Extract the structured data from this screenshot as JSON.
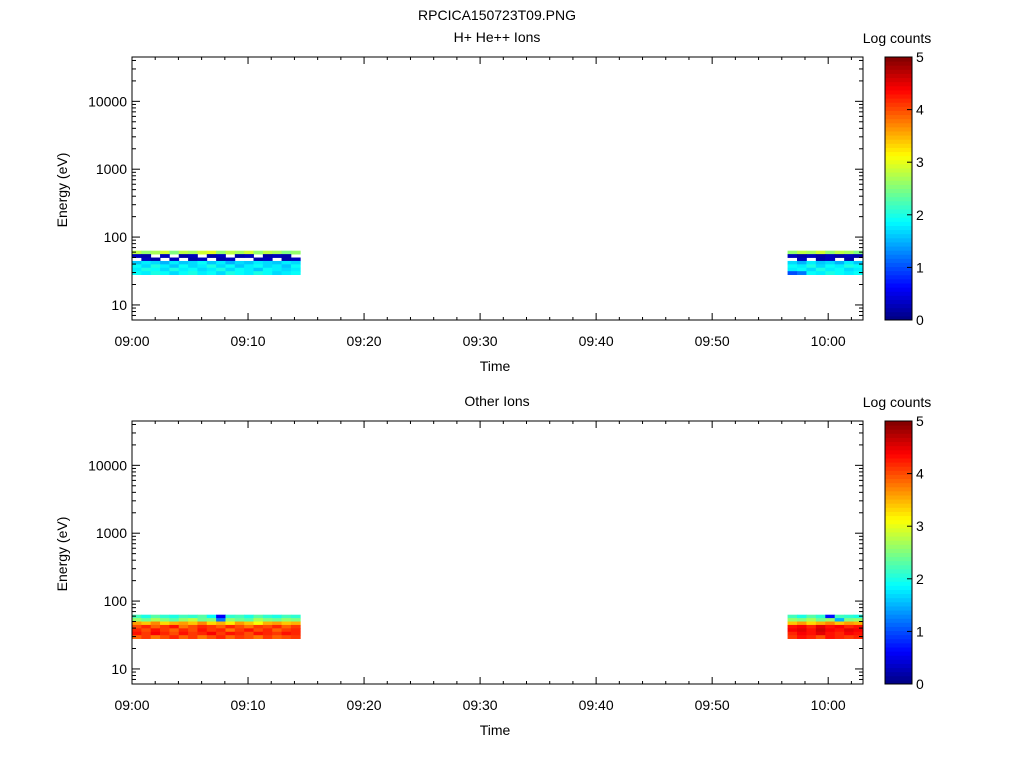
{
  "figure_title": "RPCICA150723T09.PNG",
  "colormap": [
    "#00007f",
    "#0000ff",
    "#007fff",
    "#00ffff",
    "#7fff7f",
    "#ffff00",
    "#ff7f00",
    "#ff0000",
    "#7f0000"
  ],
  "chart_data": [
    {
      "type": "heatmap",
      "title": "H+ He++ Ions",
      "xlabel": "Time",
      "ylabel": "Energy (eV)",
      "y_scale": "log",
      "xlim": [
        "09:00",
        "10:03"
      ],
      "ylim": [
        6,
        45000
      ],
      "x_ticks": [
        "09:00",
        "09:10",
        "09:20",
        "09:30",
        "09:40",
        "09:50",
        "10:00"
      ],
      "y_ticks": [
        10,
        100,
        1000,
        10000
      ],
      "y_tick_labels": [
        "10",
        "100",
        "1000",
        "10000"
      ],
      "colorbar": {
        "label": "Log counts",
        "range": [
          0,
          5
        ],
        "ticks": [
          "0",
          "1",
          "2",
          "3",
          "4",
          "5"
        ]
      },
      "segments": [
        {
          "t_start": "09:00",
          "t_end": "09:14.5",
          "energy_range_eV": [
            28,
            63
          ]
        },
        {
          "t_start": "09:56.5",
          "t_end": "10:03",
          "energy_range_eV": [
            28,
            63
          ]
        }
      ],
      "energy_bins_eV": [
        63,
        55,
        48,
        42,
        37,
        32,
        28
      ],
      "bin_log_counts": [
        {
          "segment": 1,
          "rows": [
            [
              2.8,
              2.6,
              2.7,
              2.9,
              2.5,
              2.8,
              2.7,
              2.9,
              3.0,
              2.6,
              2.8,
              2.7,
              2.9,
              2.6,
              2.8,
              2.7,
              2.5,
              2.6
            ],
            [
              0.3,
              0.2,
              null,
              0.3,
              null,
              0.2,
              0.3,
              null,
              0.2,
              0.3,
              null,
              0.2,
              0.3,
              null,
              0.2,
              0.3,
              0.2,
              null
            ],
            [
              null,
              0.3,
              0.2,
              null,
              0.3,
              null,
              0.2,
              0.3,
              null,
              0.2,
              0.3,
              null,
              null,
              0.2,
              0.3,
              null,
              0.2,
              0.3
            ],
            [
              1.6,
              1.8,
              1.7,
              1.5,
              1.8,
              1.6,
              1.7,
              1.9,
              1.6,
              1.8,
              1.5,
              1.7,
              1.6,
              1.8,
              1.7,
              1.6,
              1.8,
              1.7
            ],
            [
              1.9,
              1.7,
              2.0,
              1.8,
              1.6,
              1.9,
              1.7,
              1.8,
              2.0,
              1.7,
              1.9,
              1.6,
              1.8,
              1.9,
              1.7,
              1.8,
              1.6,
              1.9
            ],
            [
              1.8,
              2.0,
              1.9,
              1.7,
              2.0,
              1.8,
              1.9,
              1.7,
              1.8,
              2.0,
              1.7,
              1.9,
              1.8,
              1.6,
              1.9,
              1.8,
              1.7,
              1.8
            ],
            [
              1.9,
              1.8,
              2.0,
              1.9,
              1.7,
              1.9,
              2.0,
              1.8,
              1.9,
              1.7,
              2.0,
              1.9,
              1.8,
              2.0,
              1.9,
              1.7,
              1.8,
              1.9
            ]
          ]
        },
        {
          "segment": 2,
          "rows": [
            [
              2.6,
              2.8,
              2.7,
              2.9,
              2.6,
              2.8,
              2.7,
              2.5
            ],
            [
              0.3,
              0.2,
              0.3,
              0.2,
              0.3,
              0.2,
              0.3,
              0.2
            ],
            [
              null,
              0.3,
              null,
              0.2,
              0.3,
              null,
              0.2,
              null
            ],
            [
              1.7,
              1.5,
              1.8,
              1.6,
              1.7,
              1.5,
              1.8,
              1.6
            ],
            [
              1.9,
              1.8,
              2.0,
              1.7,
              1.9,
              1.8,
              2.0,
              1.9
            ],
            [
              1.8,
              1.9,
              1.7,
              2.0,
              1.8,
              1.9,
              1.7,
              1.8
            ],
            [
              1.0,
              1.2,
              1.9,
              1.8,
              2.0,
              1.9,
              1.8,
              1.9
            ]
          ]
        }
      ]
    },
    {
      "type": "heatmap",
      "title": "Other Ions",
      "xlabel": "Time",
      "ylabel": "Energy (eV)",
      "y_scale": "log",
      "xlim": [
        "09:00",
        "10:03"
      ],
      "ylim": [
        6,
        45000
      ],
      "x_ticks": [
        "09:00",
        "09:10",
        "09:20",
        "09:30",
        "09:40",
        "09:50",
        "10:00"
      ],
      "y_ticks": [
        10,
        100,
        1000,
        10000
      ],
      "y_tick_labels": [
        "10",
        "100",
        "1000",
        "10000"
      ],
      "colorbar": {
        "label": "Log counts",
        "range": [
          0,
          5
        ],
        "ticks": [
          "0",
          "1",
          "2",
          "3",
          "4",
          "5"
        ]
      },
      "segments": [
        {
          "t_start": "09:00",
          "t_end": "09:14.5",
          "energy_range_eV": [
            28,
            63
          ]
        },
        {
          "t_start": "09:56.5",
          "t_end": "10:03",
          "energy_range_eV": [
            28,
            63
          ]
        }
      ],
      "energy_bins_eV": [
        63,
        55,
        48,
        42,
        37,
        32,
        28
      ],
      "bin_log_counts": [
        {
          "segment": 1,
          "rows": [
            [
              2.2,
              2.0,
              2.3,
              2.1,
              2.0,
              2.2,
              2.1,
              2.3,
              1.9,
              0.6,
              2.1,
              2.2,
              2.0,
              2.3,
              2.1,
              2.0,
              2.2,
              2.1
            ],
            [
              2.6,
              2.4,
              2.7,
              2.5,
              2.3,
              2.6,
              2.8,
              2.4,
              2.5,
              1.2,
              2.6,
              2.4,
              2.3,
              2.7,
              2.5,
              2.4,
              2.6,
              2.5
            ],
            [
              3.6,
              3.4,
              3.7,
              3.3,
              3.5,
              3.6,
              3.4,
              3.7,
              3.3,
              3.5,
              3.2,
              3.6,
              3.4,
              3.1,
              3.5,
              3.6,
              3.4,
              3.5
            ],
            [
              4.0,
              4.2,
              3.9,
              4.1,
              4.3,
              3.8,
              4.0,
              4.2,
              4.1,
              3.9,
              4.2,
              4.0,
              3.8,
              4.1,
              4.0,
              4.2,
              3.9,
              4.1
            ],
            [
              4.2,
              4.0,
              4.3,
              4.1,
              3.9,
              4.2,
              4.0,
              4.3,
              4.1,
              4.2,
              3.8,
              4.1,
              4.3,
              4.0,
              4.2,
              3.9,
              4.1,
              4.2
            ],
            [
              4.3,
              4.1,
              4.4,
              4.2,
              4.0,
              4.3,
              4.1,
              4.2,
              4.4,
              4.1,
              4.3,
              4.2,
              4.0,
              4.3,
              4.2,
              4.1,
              4.3,
              4.2
            ],
            [
              3.9,
              4.1,
              3.8,
              4.0,
              4.2,
              3.9,
              4.1,
              3.8,
              4.0,
              4.2,
              3.9,
              4.1,
              4.0,
              3.8,
              4.1,
              3.9,
              4.0,
              4.1
            ]
          ]
        },
        {
          "segment": 2,
          "rows": [
            [
              2.2,
              2.0,
              2.3,
              2.1,
              0.7,
              2.2,
              2.1,
              2.0
            ],
            [
              2.6,
              2.5,
              2.7,
              2.4,
              2.6,
              1.5,
              2.5,
              2.6
            ],
            [
              3.4,
              3.6,
              3.3,
              3.5,
              3.7,
              3.4,
              3.6,
              3.5
            ],
            [
              4.3,
              4.4,
              4.2,
              4.5,
              4.3,
              4.4,
              4.2,
              4.3
            ],
            [
              4.4,
              4.5,
              4.3,
              4.6,
              4.4,
              4.3,
              4.5,
              4.4
            ],
            [
              4.2,
              4.4,
              4.3,
              4.5,
              4.3,
              4.2,
              4.4,
              4.3
            ],
            [
              4.1,
              4.3,
              4.2,
              4.0,
              4.3,
              4.2,
              4.1,
              4.2
            ]
          ]
        }
      ]
    }
  ]
}
